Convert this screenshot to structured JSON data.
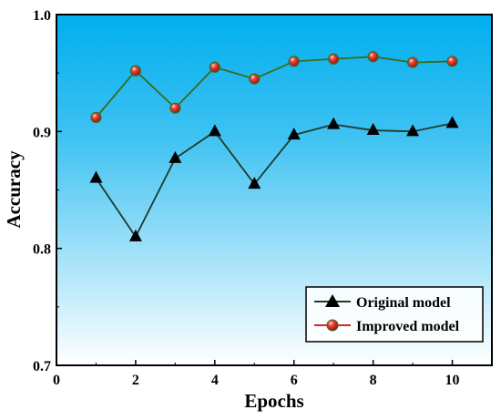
{
  "chart_data": {
    "type": "line",
    "title": "",
    "xlabel": "Epochs",
    "ylabel": "Accuracy",
    "xlim": [
      0,
      11
    ],
    "ylim": [
      0.7,
      1.0
    ],
    "xticks": [
      0,
      2,
      4,
      6,
      8,
      10
    ],
    "yticks": [
      0.7,
      0.8,
      0.9,
      1.0
    ],
    "xtick_labels": [
      "0",
      "2",
      "4",
      "6",
      "8",
      "10"
    ],
    "ytick_labels": [
      "0.7",
      "0.8",
      "0.9",
      "1.0"
    ],
    "grid": false,
    "legend_position": "bottom-right",
    "background": {
      "gradient_top": "#00AEEF",
      "gradient_bottom": "#FFFFFF"
    },
    "x": [
      1,
      2,
      3,
      4,
      5,
      6,
      7,
      8,
      9,
      10
    ],
    "series": [
      {
        "name": "Original model",
        "values": [
          0.86,
          0.81,
          0.877,
          0.9,
          0.855,
          0.897,
          0.906,
          0.901,
          0.9,
          0.907
        ],
        "line_color": "#1f3b2a",
        "marker": "triangle",
        "marker_color": "#000000"
      },
      {
        "name": "Improved model",
        "values": [
          0.912,
          0.952,
          0.92,
          0.955,
          0.945,
          0.96,
          0.962,
          0.964,
          0.959,
          0.96
        ],
        "line_color": "#3a6b1a",
        "marker": "sphere",
        "marker_color": "#d9252a",
        "marker_edge": "#3a6b1a"
      }
    ]
  }
}
